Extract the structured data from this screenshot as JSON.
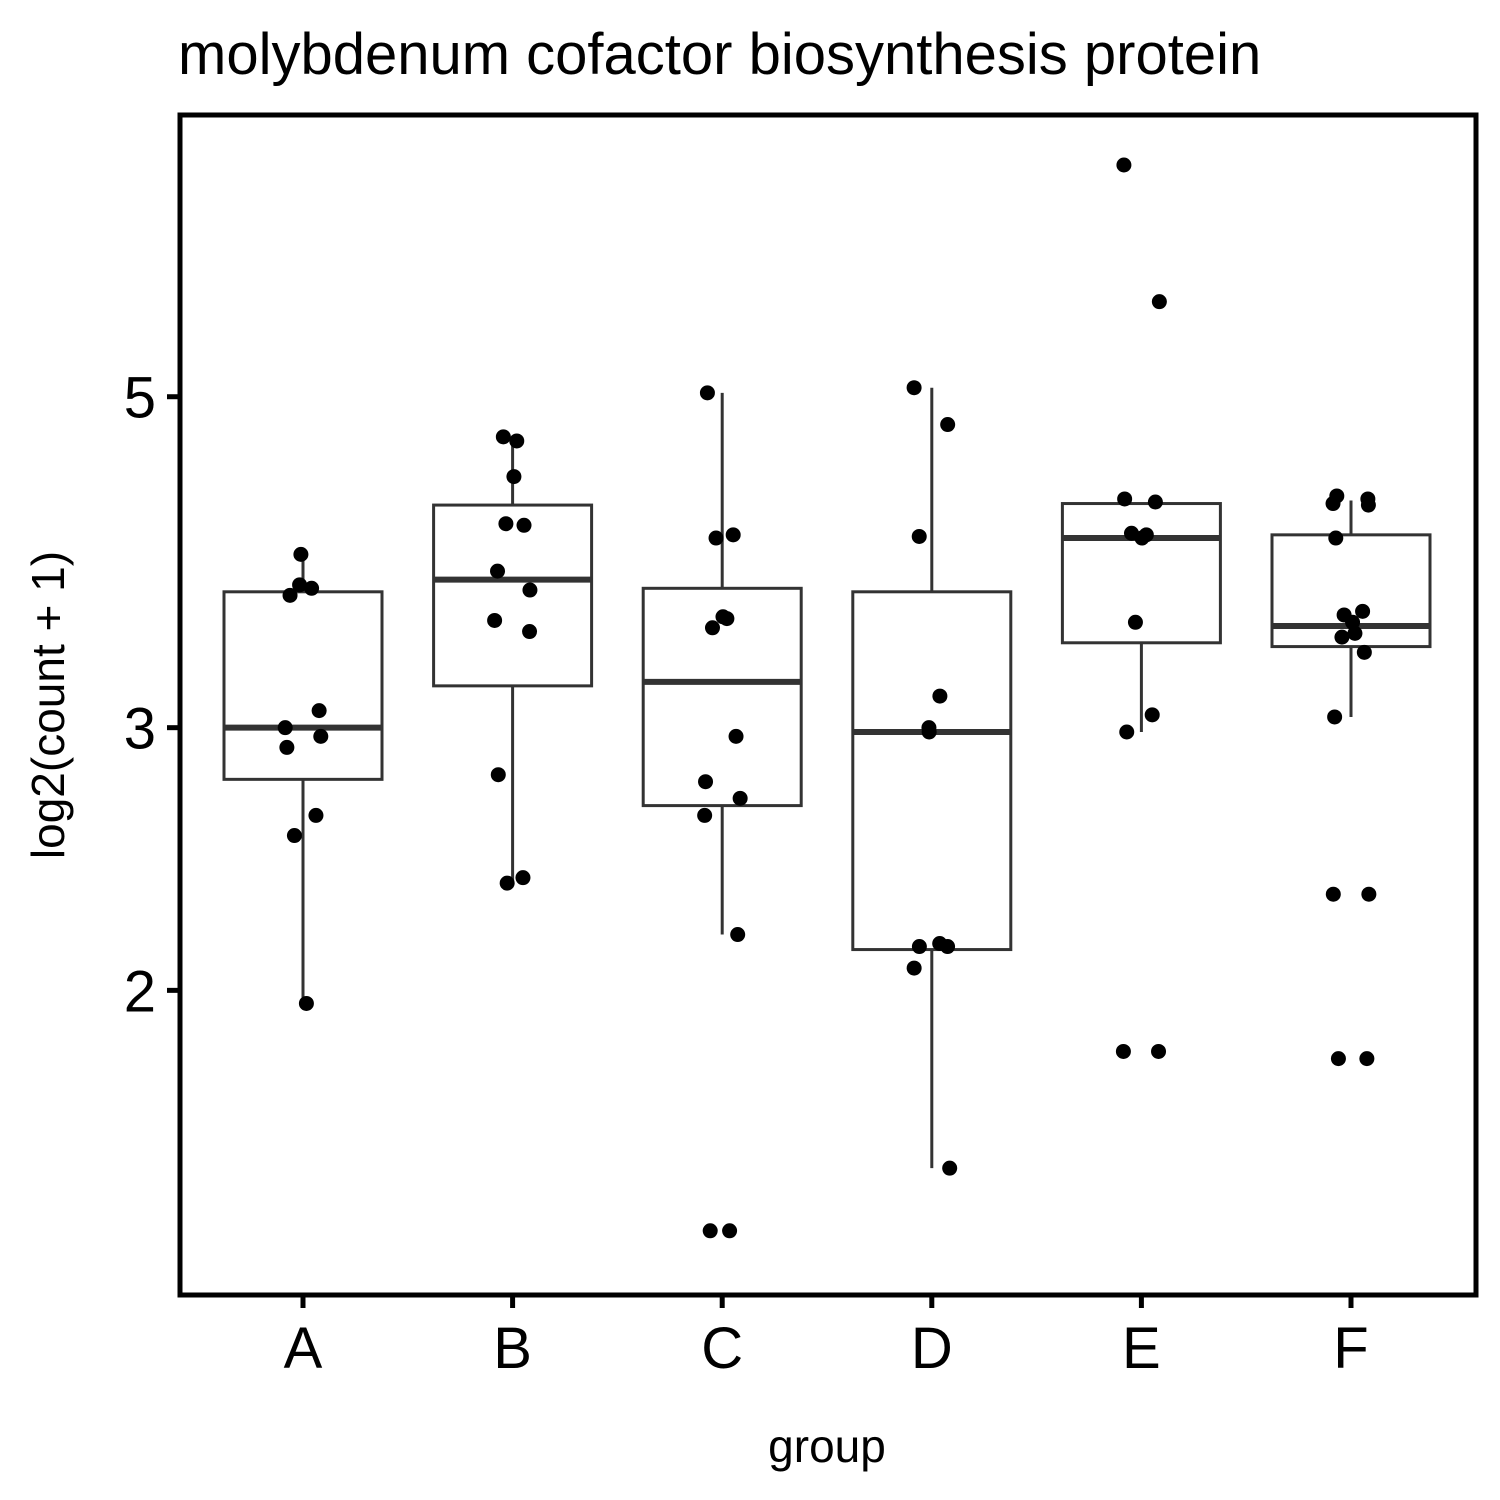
{
  "chart_data": {
    "type": "box",
    "title": "molybdenum cofactor biosynthesis protein",
    "xlabel": "group",
    "ylabel": "log2(count + 1)",
    "y_scale": "log2",
    "ylim": [
      1.35,
      7.15
    ],
    "yticks": [
      {
        "value": 2,
        "label": "2"
      },
      {
        "value": 3,
        "label": "3"
      },
      {
        "value": 5,
        "label": "5"
      }
    ],
    "grid": false,
    "legend": "none",
    "colors": {
      "box": "#333333",
      "point": "#000000",
      "frame": "#000000"
    },
    "categories": [
      "A",
      "B",
      "C",
      "D",
      "E",
      "F"
    ],
    "boxes": [
      {
        "group": "A",
        "whisker_low": 1.96,
        "q1": 2.77,
        "median": 3.0,
        "q3": 3.7,
        "whisker_high": 3.9
      },
      {
        "group": "B",
        "whisker_low": 2.36,
        "q1": 3.2,
        "median": 3.77,
        "q3": 4.23,
        "whisker_high": 4.67
      },
      {
        "group": "C",
        "whisker_low": 2.18,
        "q1": 2.66,
        "median": 3.22,
        "q3": 3.72,
        "whisker_high": 5.03
      },
      {
        "group": "D",
        "whisker_low": 1.52,
        "q1": 2.13,
        "median": 2.98,
        "q3": 3.7,
        "whisker_high": 5.07
      },
      {
        "group": "E",
        "whisker_low": 2.98,
        "q1": 3.42,
        "median": 4.02,
        "q3": 4.24,
        "whisker_high": 4.24
      },
      {
        "group": "F",
        "whisker_low": 3.05,
        "q1": 3.4,
        "median": 3.51,
        "q3": 4.04,
        "whisker_high": 4.26
      }
    ],
    "points": [
      {
        "group": "A",
        "values": [
          3.92,
          3.74,
          3.72,
          3.68,
          3.08,
          3.0,
          2.96,
          2.91,
          2.62,
          2.54,
          1.96
        ]
      },
      {
        "group": "B",
        "values": [
          4.7,
          4.67,
          4.42,
          4.11,
          4.1,
          3.82,
          3.71,
          3.54,
          3.48,
          2.79,
          2.38,
          2.36
        ]
      },
      {
        "group": "C",
        "values": [
          5.03,
          4.04,
          4.02,
          3.56,
          3.55,
          3.5,
          2.96,
          2.76,
          2.69,
          2.62,
          2.18,
          1.38,
          1.38
        ]
      },
      {
        "group": "D",
        "values": [
          5.07,
          4.79,
          4.03,
          3.15,
          3.0,
          2.98,
          2.15,
          2.14,
          2.14,
          2.07,
          1.52
        ]
      },
      {
        "group": "E",
        "values": [
          7.15,
          5.79,
          4.27,
          4.25,
          4.05,
          4.04,
          4.02,
          3.53,
          3.06,
          2.98,
          1.82,
          1.82
        ]
      },
      {
        "group": "F",
        "values": [
          4.29,
          4.27,
          4.24,
          4.23,
          4.02,
          3.59,
          3.57,
          3.53,
          3.47,
          3.45,
          3.37,
          3.05,
          2.32,
          2.32,
          1.8,
          1.8
        ]
      }
    ]
  }
}
